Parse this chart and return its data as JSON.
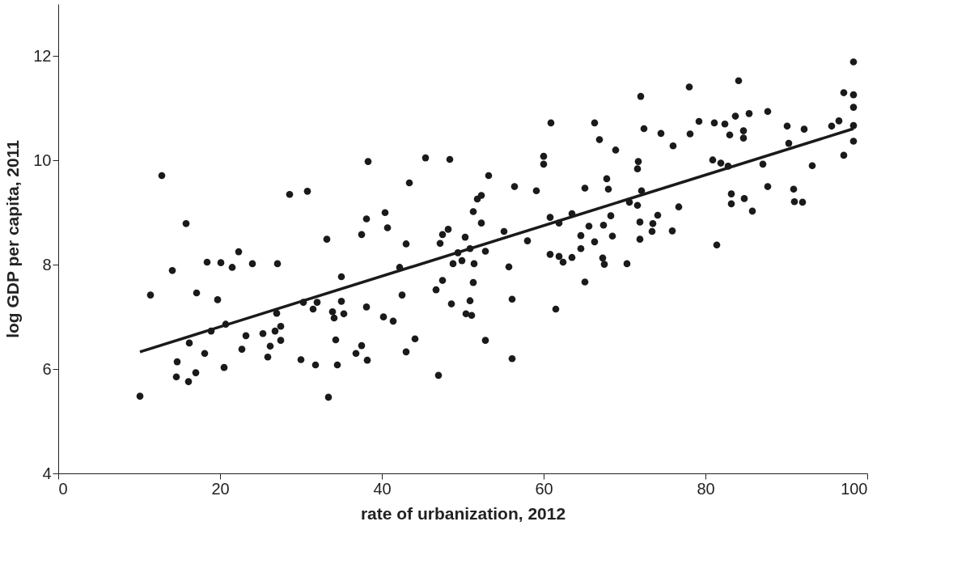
{
  "chart_data": {
    "type": "scatter",
    "xlabel": "rate of urbanization, 2012",
    "ylabel": "log GDP per capita, 2011",
    "xlim": [
      0,
      100
    ],
    "ylim": [
      4,
      13
    ],
    "xticks": [
      0,
      20,
      40,
      60,
      80,
      100
    ],
    "yticks": [
      4,
      6,
      8,
      10,
      12
    ],
    "grid": false,
    "series": [
      {
        "color": "#1a1a1a",
        "marker": "circle",
        "x": [
          12.8,
          28.6,
          30.8,
          15.8,
          33.2,
          22.3,
          18.4,
          20.1,
          21.5,
          24.0,
          27.1,
          14.1,
          35.0,
          11.4,
          17.1,
          19.7,
          30.3,
          32.0,
          31.5,
          35.0,
          33.9,
          35.3,
          34.1,
          27.0,
          20.7,
          18.9,
          27.5,
          26.8,
          23.2,
          25.3,
          16.2,
          27.5,
          26.2,
          34.3,
          18.1,
          22.7,
          25.9,
          36.8,
          14.7,
          20.5,
          30.0,
          31.8,
          34.5,
          14.6,
          17.0,
          16.1,
          10.1,
          33.4,
          60.9,
          60.0,
          60.0,
          38.3,
          45.4,
          48.4,
          53.2,
          43.4,
          56.4,
          59.1,
          65.1,
          52.3,
          51.8,
          51.3,
          52.3,
          38.1,
          40.4,
          40.7,
          37.5,
          43.0,
          47.2,
          47.5,
          48.2,
          50.3,
          50.9,
          52.8,
          55.1,
          58.0,
          60.8,
          61.9,
          63.5,
          64.6,
          64.6,
          65.1,
          49.4,
          48.8,
          49.9,
          51.4,
          42.2,
          55.7,
          60.8,
          61.9,
          62.4,
          63.5,
          47.5,
          51.3,
          46.7,
          42.5,
          50.9,
          48.6,
          56.1,
          38.1,
          40.2,
          41.4,
          50.4,
          51.1,
          61.5,
          44.1,
          52.8,
          37.5,
          38.2,
          43.0,
          56.1,
          47.0,
          98.3,
          84.1,
          78.0,
          72.0,
          97.1,
          98.3,
          98.3,
          66.3,
          79.2,
          81.1,
          82.4,
          83.7,
          85.4,
          87.7,
          72.4,
          74.5,
          78.1,
          83.0,
          84.7,
          84.7,
          66.9,
          76.0,
          68.9,
          90.1,
          92.2,
          95.6,
          96.5,
          98.3,
          98.3,
          97.1,
          90.3,
          93.2,
          87.1,
          80.9,
          81.9,
          82.8,
          71.7,
          71.6,
          67.8,
          68.0,
          72.1,
          87.7,
          90.9,
          83.2,
          84.8,
          83.2,
          85.8,
          91.0,
          92.0,
          70.6,
          71.6,
          76.7,
          68.3,
          74.1,
          73.5,
          73.4,
          71.9,
          65.6,
          67.4,
          68.5,
          71.9,
          75.9,
          66.3,
          67.3,
          67.5,
          70.3,
          81.4
        ],
        "values": [
          9.71,
          9.35,
          9.41,
          8.79,
          8.49,
          8.25,
          8.05,
          8.04,
          7.95,
          8.02,
          8.02,
          7.89,
          7.77,
          7.42,
          7.46,
          7.33,
          7.28,
          7.28,
          7.15,
          7.3,
          7.1,
          7.06,
          6.98,
          7.07,
          6.86,
          6.73,
          6.82,
          6.73,
          6.64,
          6.68,
          6.5,
          6.55,
          6.44,
          6.56,
          6.3,
          6.38,
          6.23,
          6.3,
          6.14,
          6.03,
          6.18,
          6.08,
          6.08,
          5.85,
          5.93,
          5.76,
          5.48,
          5.46,
          10.72,
          10.08,
          9.93,
          9.98,
          10.05,
          10.02,
          9.71,
          9.57,
          9.5,
          9.42,
          9.47,
          9.33,
          9.26,
          9.02,
          8.8,
          8.88,
          9.0,
          8.71,
          8.58,
          8.4,
          8.41,
          8.58,
          8.68,
          8.53,
          8.31,
          8.26,
          8.64,
          8.46,
          8.91,
          8.8,
          8.98,
          8.56,
          8.31,
          7.67,
          8.23,
          8.02,
          8.08,
          8.02,
          7.95,
          7.96,
          8.2,
          8.16,
          8.05,
          8.14,
          7.7,
          7.66,
          7.52,
          7.42,
          7.31,
          7.25,
          7.34,
          7.19,
          7.0,
          6.92,
          7.06,
          7.03,
          7.15,
          6.58,
          6.55,
          6.45,
          6.17,
          6.33,
          6.2,
          5.88,
          11.89,
          11.53,
          11.41,
          11.23,
          11.3,
          11.26,
          11.02,
          10.72,
          10.75,
          10.72,
          10.7,
          10.85,
          10.9,
          10.94,
          10.61,
          10.52,
          10.51,
          10.49,
          10.57,
          10.43,
          10.4,
          10.28,
          10.2,
          10.66,
          10.6,
          10.66,
          10.76,
          10.67,
          10.37,
          10.1,
          10.33,
          9.9,
          9.93,
          10.01,
          9.95,
          9.89,
          9.98,
          9.84,
          9.65,
          9.45,
          9.42,
          9.5,
          9.45,
          9.36,
          9.27,
          9.17,
          9.03,
          9.21,
          9.2,
          9.2,
          9.14,
          9.11,
          8.94,
          8.95,
          8.79,
          8.64,
          8.82,
          8.74,
          8.76,
          8.55,
          8.49,
          8.65,
          8.44,
          8.13,
          8.01,
          8.02,
          8.38
        ]
      },
      {
        "type": "line",
        "color": "#1a1a1a",
        "line_style": "solid",
        "marker": "none",
        "x": [
          10.1,
          98.3
        ],
        "values": [
          6.33,
          10.61
        ]
      }
    ]
  }
}
